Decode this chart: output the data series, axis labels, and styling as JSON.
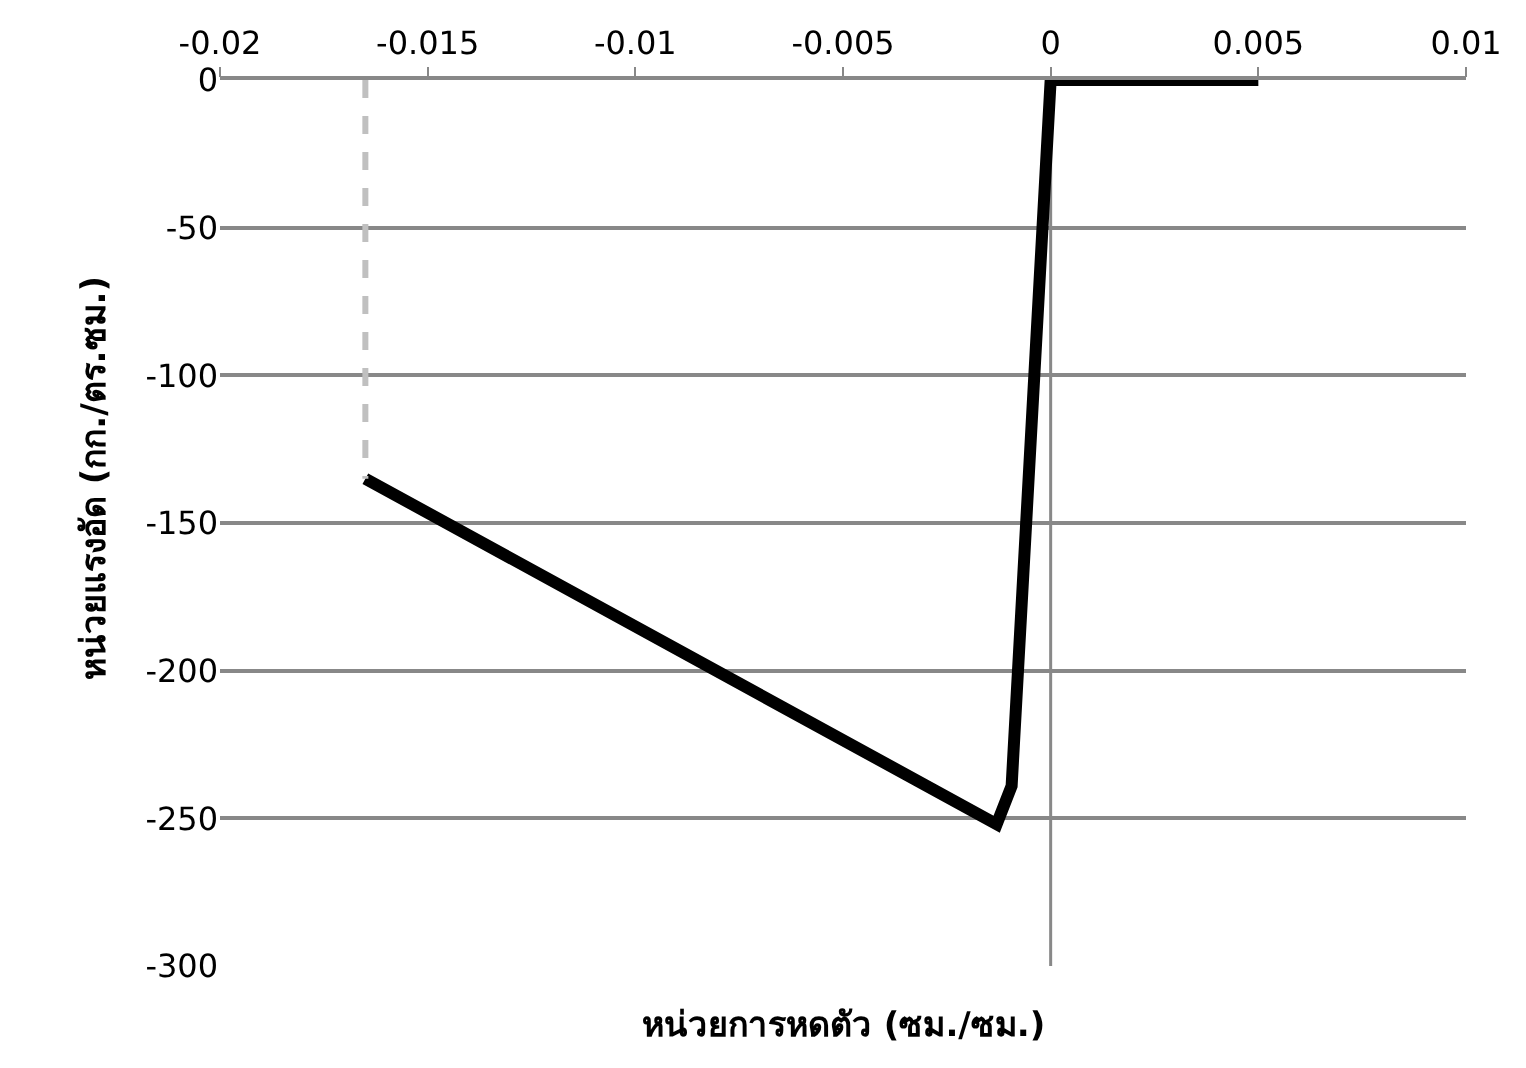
{
  "chart_data": {
    "type": "line",
    "xlabel": "หน่วยการหดตัว (ซม./ซม.)",
    "ylabel": "หน่วยแรงอัด (กก./ตร.ซม.)",
    "xlim": [
      -0.02,
      0.01
    ],
    "xticks": [
      -0.02,
      -0.015,
      -0.01,
      -0.005,
      0,
      0.005,
      0.01
    ],
    "ylim": [
      -300,
      0
    ],
    "yticks": [
      -300,
      -250,
      -200,
      -150,
      -100,
      -50,
      0
    ],
    "grid": "y",
    "ref_lines": [
      {
        "axis": "x",
        "value": 0,
        "color": "#888888"
      }
    ],
    "series": [
      {
        "color": "#000000",
        "line_style": "solid",
        "x": [
          -0.0165,
          -0.0013,
          -0.00094,
          0,
          0.005
        ],
        "values": [
          -135,
          -252,
          -239,
          0,
          0
        ]
      },
      {
        "color": "#c0c0c0",
        "line_style": "dashed",
        "x": [
          -0.0165,
          -0.0165
        ],
        "values": [
          0,
          -135
        ]
      }
    ]
  }
}
